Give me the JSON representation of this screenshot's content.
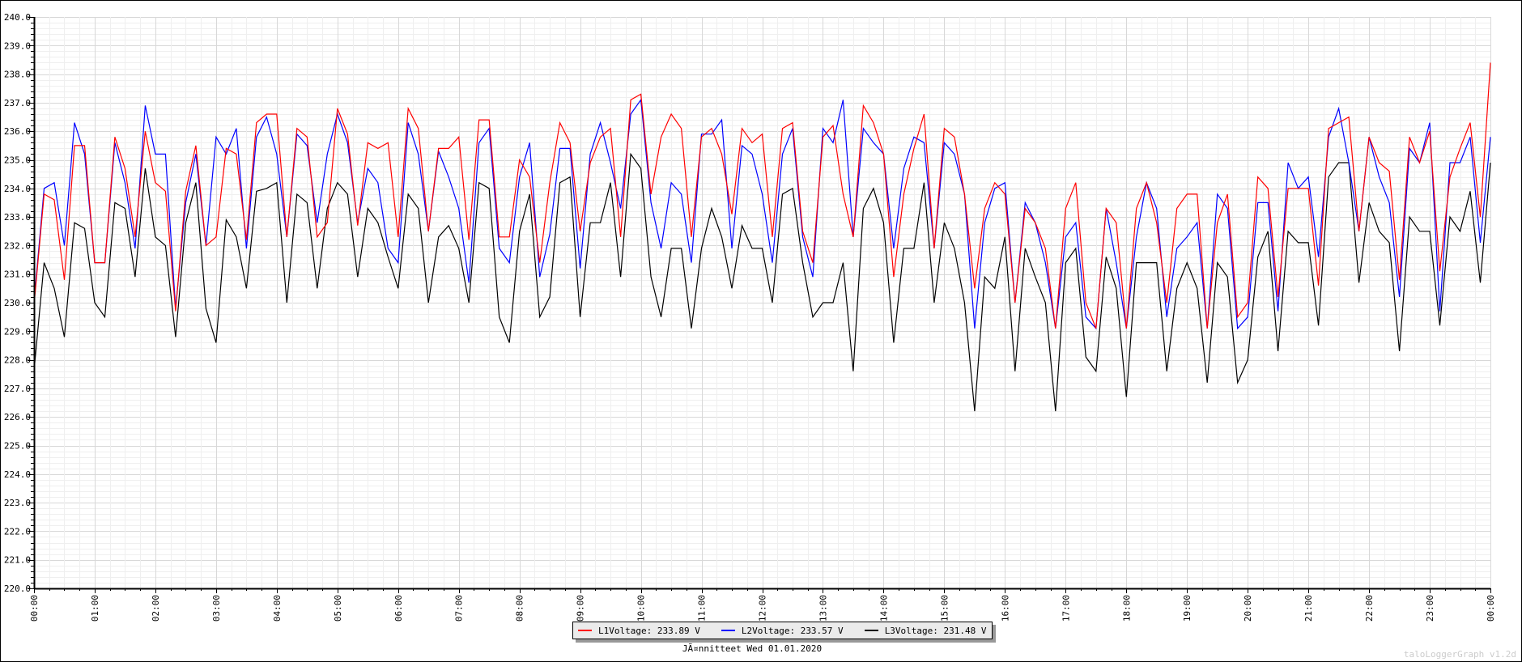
{
  "chart_data": {
    "type": "line",
    "title": "JÃ¤nnitteet Wed 01.01.2020",
    "ylim": [
      220,
      240
    ],
    "grid": true,
    "legend_position": "bottom-center",
    "y_tick_labels": [
      "220.0",
      "221.0",
      "222.0",
      "223.0",
      "224.0",
      "225.0",
      "226.0",
      "227.0",
      "228.0",
      "229.0",
      "230.0",
      "231.0",
      "232.0",
      "233.0",
      "234.0",
      "235.0",
      "236.0",
      "237.0",
      "238.0",
      "239.0",
      "240.0"
    ],
    "x_tick_labels": [
      "00:00",
      "01:00",
      "02:00",
      "03:00",
      "04:00",
      "05:00",
      "06:00",
      "07:00",
      "08:00",
      "09:00",
      "10:00",
      "11:00",
      "12:00",
      "13:00",
      "14:00",
      "15:00",
      "16:00",
      "17:00",
      "18:00",
      "19:00",
      "20:00",
      "21:00",
      "22:00",
      "23:00",
      "00:00"
    ],
    "x_range": [
      "00:00",
      "24:00"
    ],
    "series": [
      {
        "name": "L1Voltage",
        "legend_label": "L1Voltage: 233.89 V",
        "color": "#ff0000",
        "values": [
          229.9,
          233.8,
          233.6,
          230.8,
          235.5,
          235.5,
          231.4,
          231.4,
          235.8,
          234.7,
          232.3,
          236,
          234.2,
          233.9,
          229.7,
          233.9,
          235.5,
          232,
          232.3,
          235.4,
          235.2,
          232.2,
          236.3,
          236.6,
          236.6,
          232.3,
          236.1,
          235.8,
          232.3,
          232.8,
          236.8,
          235.9,
          232.7,
          235.6,
          235.4,
          235.6,
          232.3,
          236.8,
          236.1,
          232.5,
          235.4,
          235.4,
          235.8,
          232.2,
          236.4,
          236.4,
          232.3,
          232.3,
          235,
          234.4,
          231.4,
          234.2,
          236.3,
          235.6,
          232.5,
          234.9,
          235.8,
          236.1,
          232.3,
          237.1,
          237.3,
          233.8,
          235.8,
          236.6,
          236.1,
          232.3,
          235.8,
          236.1,
          235.2,
          233.1,
          236.1,
          235.6,
          235.9,
          232.3,
          236.1,
          236.3,
          232.5,
          231.4,
          235.8,
          236.2,
          233.8,
          232.3,
          236.9,
          236.3,
          235.2,
          230.9,
          233.8,
          235.4,
          236.6,
          231.9,
          236.1,
          235.8,
          233.8,
          230.5,
          233.3,
          234.2,
          233.8,
          230,
          233.3,
          232.8,
          231.9,
          229.1,
          233.3,
          234.2,
          230,
          229.1,
          233.3,
          232.8,
          229.1,
          233.3,
          234.2,
          232.8,
          230,
          233.3,
          233.8,
          233.8,
          229.1,
          232.8,
          233.8,
          229.5,
          230,
          234.4,
          234,
          230.2,
          234,
          234,
          234,
          230.6,
          236.1,
          236.3,
          236.5,
          232.5,
          235.8,
          234.9,
          234.6,
          230.8,
          235.8,
          234.9,
          236,
          231.1,
          234.4,
          235.4,
          236.3,
          233,
          238.4
        ]
      },
      {
        "name": "L2Voltage",
        "legend_label": "L2Voltage: 233.57 V",
        "color": "#0000ff",
        "values": [
          230,
          234,
          234.2,
          232,
          236.3,
          235.2,
          231.4,
          231.4,
          235.6,
          234.2,
          231.9,
          236.9,
          235.2,
          235.2,
          229.8,
          233.5,
          235.2,
          232,
          235.8,
          235.2,
          236.1,
          231.9,
          235.8,
          236.5,
          235.2,
          232.3,
          235.9,
          235.5,
          232.8,
          235.2,
          236.6,
          235.6,
          232.8,
          234.7,
          234.2,
          231.9,
          231.4,
          236.3,
          235.2,
          232.5,
          235.3,
          234.4,
          233.3,
          230.7,
          235.6,
          236.1,
          231.9,
          231.4,
          234.4,
          235.6,
          230.9,
          232.4,
          235.4,
          235.4,
          231.2,
          235.2,
          236.3,
          234.9,
          233.3,
          236.6,
          237.1,
          233.5,
          231.9,
          234.2,
          233.8,
          231.4,
          235.9,
          235.9,
          236.4,
          231.9,
          235.5,
          235.2,
          233.8,
          231.4,
          235.2,
          236.1,
          232.3,
          230.9,
          236.1,
          235.6,
          237.1,
          232.3,
          236.1,
          235.6,
          235.2,
          231.9,
          234.7,
          235.8,
          235.6,
          231.9,
          235.6,
          235.2,
          233.8,
          229.1,
          232.8,
          234,
          234.2,
          230,
          233.5,
          232.8,
          231.4,
          229.1,
          232.3,
          232.8,
          229.5,
          229.1,
          233.3,
          231.4,
          229.1,
          232.3,
          234.2,
          233.3,
          229.5,
          231.9,
          232.3,
          232.8,
          229.1,
          233.8,
          233.3,
          229.1,
          229.5,
          233.5,
          233.5,
          229.7,
          234.9,
          234,
          234.4,
          231.6,
          235.8,
          236.8,
          234.9,
          232.5,
          235.8,
          234.4,
          233.5,
          230.2,
          235.4,
          234.9,
          236.3,
          229.7,
          234.9,
          234.9,
          235.8,
          232.1,
          235.8
        ]
      },
      {
        "name": "L3Voltage",
        "legend_label": "L3Voltage: 231.48 V",
        "color": "#000000",
        "values": [
          227.6,
          231.4,
          230.5,
          228.8,
          232.8,
          232.6,
          230,
          229.5,
          233.5,
          233.3,
          230.9,
          234.7,
          232.3,
          232,
          228.8,
          232.8,
          234.2,
          229.8,
          228.6,
          232.9,
          232.3,
          230.5,
          233.9,
          234,
          234.2,
          230,
          233.8,
          233.5,
          230.5,
          233.3,
          234.2,
          233.8,
          230.9,
          233.3,
          232.8,
          231.6,
          230.5,
          233.8,
          233.3,
          230,
          232.3,
          232.7,
          231.9,
          230,
          234.2,
          234,
          229.5,
          228.6,
          232.5,
          233.8,
          229.5,
          230.2,
          234.2,
          234.4,
          229.5,
          232.8,
          232.8,
          234.2,
          230.9,
          235.2,
          234.7,
          230.9,
          229.5,
          231.9,
          231.9,
          229.1,
          231.9,
          233.3,
          232.3,
          230.5,
          232.7,
          231.9,
          231.9,
          230,
          233.8,
          234,
          231.4,
          229.5,
          230,
          230,
          231.4,
          227.6,
          233.3,
          234,
          232.8,
          228.6,
          231.9,
          231.9,
          234.2,
          230,
          232.8,
          231.9,
          230,
          226.2,
          230.9,
          230.5,
          232.3,
          227.6,
          231.9,
          230.9,
          230,
          226.2,
          231.4,
          231.9,
          228.1,
          227.6,
          231.6,
          230.5,
          226.7,
          231.4,
          231.4,
          231.4,
          227.6,
          230.5,
          231.4,
          230.5,
          227.2,
          231.4,
          230.9,
          227.2,
          228,
          231.6,
          232.5,
          228.3,
          232.5,
          232.1,
          232.1,
          229.2,
          234.4,
          234.9,
          234.9,
          230.7,
          233.5,
          232.5,
          232.1,
          228.3,
          233,
          232.5,
          232.5,
          229.2,
          233,
          232.5,
          233.9,
          230.7,
          234.9
        ]
      }
    ]
  },
  "watermark": "taloLoggerGraph v1.2d"
}
